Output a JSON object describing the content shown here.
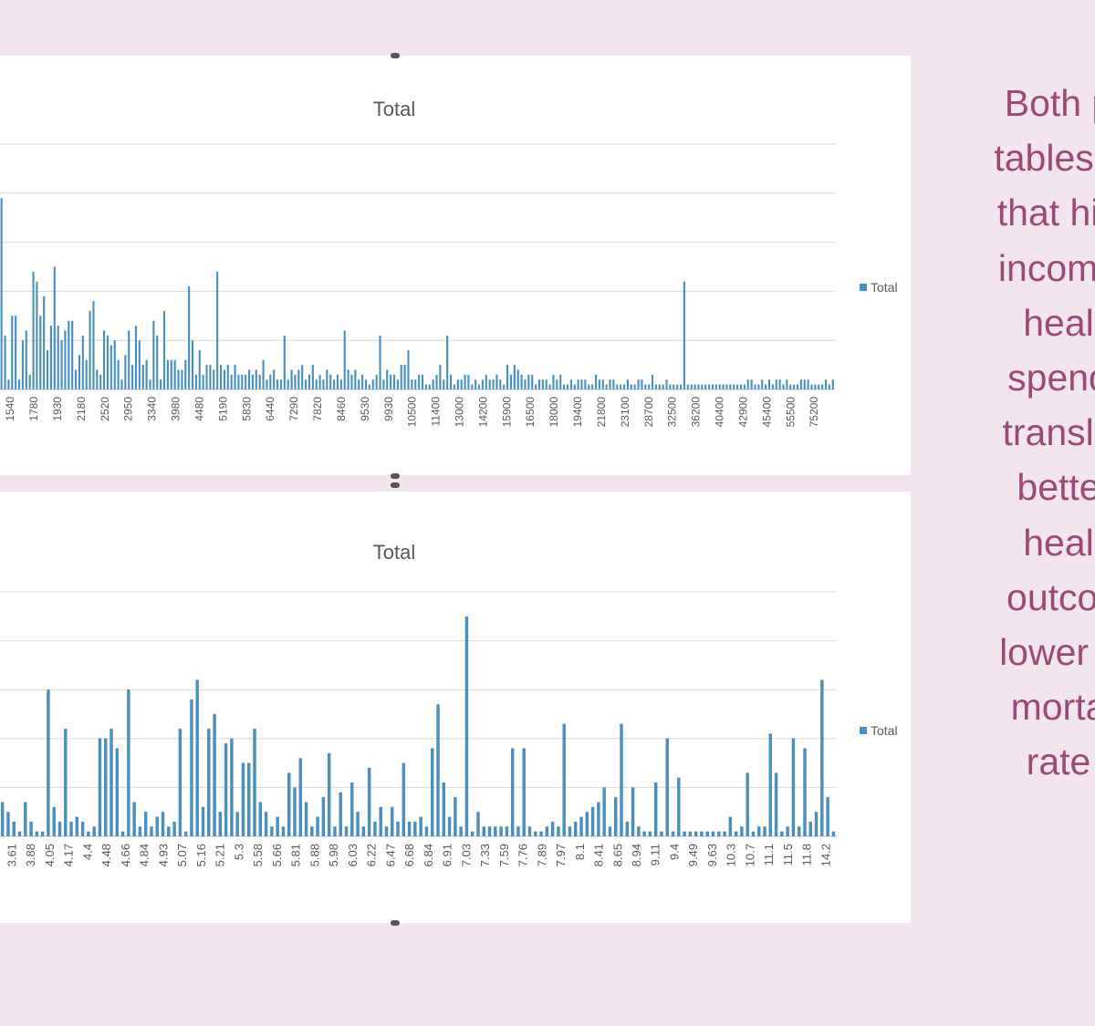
{
  "chart_data": [
    {
      "type": "bar",
      "title": "Total",
      "legend": [
        "Total"
      ],
      "legend_position": "right",
      "ylim": [
        0,
        5
      ],
      "gridlines": 5,
      "tick_labels": [
        "1540",
        "1780",
        "1930",
        "2180",
        "2520",
        "2950",
        "3340",
        "3980",
        "4480",
        "5190",
        "5830",
        "6440",
        "7290",
        "7820",
        "8460",
        "9530",
        "9930",
        "10500",
        "11400",
        "13000",
        "14200",
        "15900",
        "16500",
        "18000",
        "19400",
        "21800",
        "23100",
        "28700",
        "32500",
        "36200",
        "40400",
        "42900",
        "45400",
        "55500",
        "75200"
      ],
      "values": [
        3.9,
        1.1,
        0.2,
        1.5,
        1.5,
        0.2,
        1.0,
        1.2,
        0.3,
        2.4,
        2.2,
        1.5,
        1.9,
        0.8,
        1.3,
        2.5,
        1.3,
        1.0,
        1.2,
        1.4,
        1.4,
        0.4,
        0.7,
        1.1,
        0.6,
        1.6,
        1.8,
        0.4,
        0.3,
        1.2,
        1.1,
        0.9,
        1.0,
        0.6,
        0.2,
        0.7,
        1.2,
        0.5,
        1.3,
        1.0,
        0.5,
        0.6,
        0.2,
        1.4,
        1.1,
        0.2,
        1.6,
        0.6,
        0.6,
        0.6,
        0.4,
        0.4,
        0.6,
        2.1,
        1.0,
        0.3,
        0.8,
        0.3,
        0.5,
        0.5,
        0.4,
        2.4,
        0.5,
        0.4,
        0.5,
        0.3,
        0.5,
        0.3,
        0.3,
        0.3,
        0.4,
        0.3,
        0.4,
        0.3,
        0.6,
        0.2,
        0.3,
        0.4,
        0.2,
        0.2,
        1.1,
        0.2,
        0.4,
        0.3,
        0.4,
        0.5,
        0.2,
        0.3,
        0.5,
        0.2,
        0.3,
        0.2,
        0.4,
        0.3,
        0.2,
        0.3,
        0.2,
        1.2,
        0.4,
        0.3,
        0.4,
        0.2,
        0.3,
        0.2,
        0.1,
        0.2,
        0.3,
        1.1,
        0.2,
        0.4,
        0.3,
        0.3,
        0.2,
        0.5,
        0.5,
        0.8,
        0.2,
        0.2,
        0.3,
        0.3,
        0.1,
        0.1,
        0.2,
        0.3,
        0.5,
        0.2,
        1.1,
        0.3,
        0.1,
        0.2,
        0.2,
        0.3,
        0.3,
        0.1,
        0.2,
        0.1,
        0.2,
        0.3,
        0.2,
        0.2,
        0.3,
        0.2,
        0.1,
        0.5,
        0.3,
        0.5,
        0.4,
        0.3,
        0.2,
        0.3,
        0.3,
        0.1,
        0.2,
        0.2,
        0.2,
        0.1,
        0.3,
        0.2,
        0.3,
        0.1,
        0.1,
        0.2,
        0.1,
        0.2,
        0.2,
        0.2,
        0.1,
        0.1,
        0.3,
        0.2,
        0.2,
        0.1,
        0.2,
        0.2,
        0.1,
        0.1,
        0.1,
        0.2,
        0.1,
        0.1,
        0.2,
        0.2,
        0.1,
        0.1,
        0.3,
        0.1,
        0.1,
        0.1,
        0.2,
        0.1,
        0.1,
        0.1,
        0.1,
        2.2,
        0.1,
        0.1,
        0.1,
        0.1,
        0.1,
        0.1,
        0.1,
        0.1,
        0.1,
        0.1,
        0.1,
        0.1,
        0.1,
        0.1,
        0.1,
        0.1,
        0.1,
        0.2,
        0.2,
        0.1,
        0.1,
        0.2,
        0.1,
        0.2,
        0.1,
        0.2,
        0.2,
        0.1,
        0.2,
        0.1,
        0.1,
        0.1,
        0.2,
        0.2,
        0.2,
        0.1,
        0.1,
        0.1,
        0.1,
        0.2,
        0.1,
        0.2
      ]
    },
    {
      "type": "bar",
      "title": "Total",
      "legend": [
        "Total"
      ],
      "legend_position": "right",
      "ylim": [
        0,
        5
      ],
      "gridlines": 5,
      "tick_labels": [
        "3.61",
        "3.88",
        "4.05",
        "4.17",
        "4.4",
        "4.48",
        "4.66",
        "4.84",
        "4.93",
        "5.07",
        "5.16",
        "5.21",
        "5.3",
        "5.58",
        "5.66",
        "5.81",
        "5.88",
        "5.98",
        "6.03",
        "6.22",
        "6.47",
        "6.68",
        "6.84",
        "6.91",
        "7.03",
        "7.33",
        "7.59",
        "7.76",
        "7.89",
        "7.97",
        "8.1",
        "8.41",
        "8.65",
        "8.94",
        "9.11",
        "9.4",
        "9.49",
        "9.63",
        "10.3",
        "10.7",
        "11.1",
        "11.5",
        "11.8",
        "14.2"
      ],
      "values": [
        0.7,
        0.5,
        0.3,
        0.1,
        0.7,
        0.3,
        0.1,
        0.1,
        3.0,
        0.6,
        0.3,
        2.2,
        0.3,
        0.4,
        0.3,
        0.1,
        0.2,
        2.0,
        2.0,
        2.2,
        1.8,
        0.1,
        3.0,
        0.7,
        0.2,
        0.5,
        0.2,
        0.4,
        0.5,
        0.2,
        0.3,
        2.2,
        0.1,
        2.8,
        3.2,
        0.6,
        2.2,
        2.5,
        0.5,
        1.9,
        2.0,
        0.5,
        1.5,
        1.5,
        2.2,
        0.7,
        0.5,
        0.2,
        0.4,
        0.2,
        1.3,
        1.0,
        1.6,
        0.7,
        0.2,
        0.4,
        0.8,
        1.7,
        0.2,
        0.9,
        0.2,
        1.1,
        0.5,
        0.2,
        1.4,
        0.3,
        0.6,
        0.2,
        0.6,
        0.3,
        1.5,
        0.3,
        0.3,
        0.4,
        0.2,
        1.8,
        2.7,
        1.1,
        0.4,
        0.8,
        0.2,
        4.5,
        0.1,
        0.5,
        0.2,
        0.2,
        0.2,
        0.2,
        0.2,
        1.8,
        0.2,
        1.8,
        0.2,
        0.1,
        0.1,
        0.2,
        0.3,
        0.2,
        2.3,
        0.2,
        0.3,
        0.4,
        0.5,
        0.6,
        0.7,
        1.0,
        0.2,
        0.8,
        2.3,
        0.3,
        1.0,
        0.2,
        0.1,
        0.1,
        1.1,
        0.1,
        2.0,
        0.1,
        1.2,
        0.1,
        0.1,
        0.1,
        0.1,
        0.1,
        0.1,
        0.1,
        0.1,
        0.4,
        0.1,
        0.2,
        1.3,
        0.1,
        0.2,
        0.2,
        2.1,
        1.3,
        0.1,
        0.2,
        2.0,
        0.2,
        1.8,
        0.3,
        0.5,
        3.2,
        0.8,
        0.1
      ]
    }
  ],
  "side_text": {
    "lines": [
      "Both p",
      "tables s",
      "that hig",
      "income",
      "heal",
      "spend",
      "transla",
      "bette",
      "heal",
      "outcor",
      "lower c",
      "morta",
      "rate"
    ]
  },
  "colors": {
    "bar": "#4a90bf",
    "background": "#f3e5ee",
    "text_accent": "#9b4a78",
    "gridline": "#d9d9d9"
  }
}
